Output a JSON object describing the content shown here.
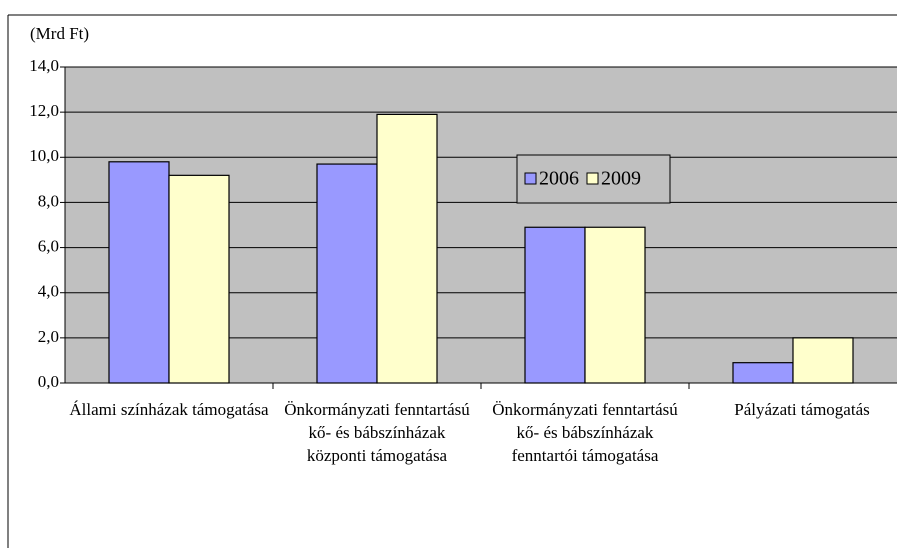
{
  "chart_data": {
    "type": "bar",
    "y_label": "(Mrd Ft)",
    "categories": [
      "Állami színházak támogatása",
      "Önkormányzati fenntartású kő- és bábszínházak központi támogatása",
      "Önkormányzati fenntartású kő- és bábszínházak fenntartói támogatása",
      "Pályázati támogatás"
    ],
    "series": [
      {
        "name": "2006",
        "color": "#9999ff",
        "values": [
          9.8,
          9.7,
          6.9,
          0.9
        ]
      },
      {
        "name": "2009",
        "color": "#ffffcc",
        "values": [
          9.2,
          11.9,
          6.9,
          2.0
        ]
      }
    ],
    "ylim": [
      0,
      14
    ],
    "yticks": [
      {
        "value": 0,
        "label": "0,0"
      },
      {
        "value": 2,
        "label": "2,0"
      },
      {
        "value": 4,
        "label": "4,0"
      },
      {
        "value": 6,
        "label": "6,0"
      },
      {
        "value": 8,
        "label": "8,0"
      },
      {
        "value": 10,
        "label": "10,0"
      },
      {
        "value": 12,
        "label": "12,0"
      },
      {
        "value": 14,
        "label": "14,0"
      }
    ],
    "grid": true,
    "legend": "center"
  }
}
